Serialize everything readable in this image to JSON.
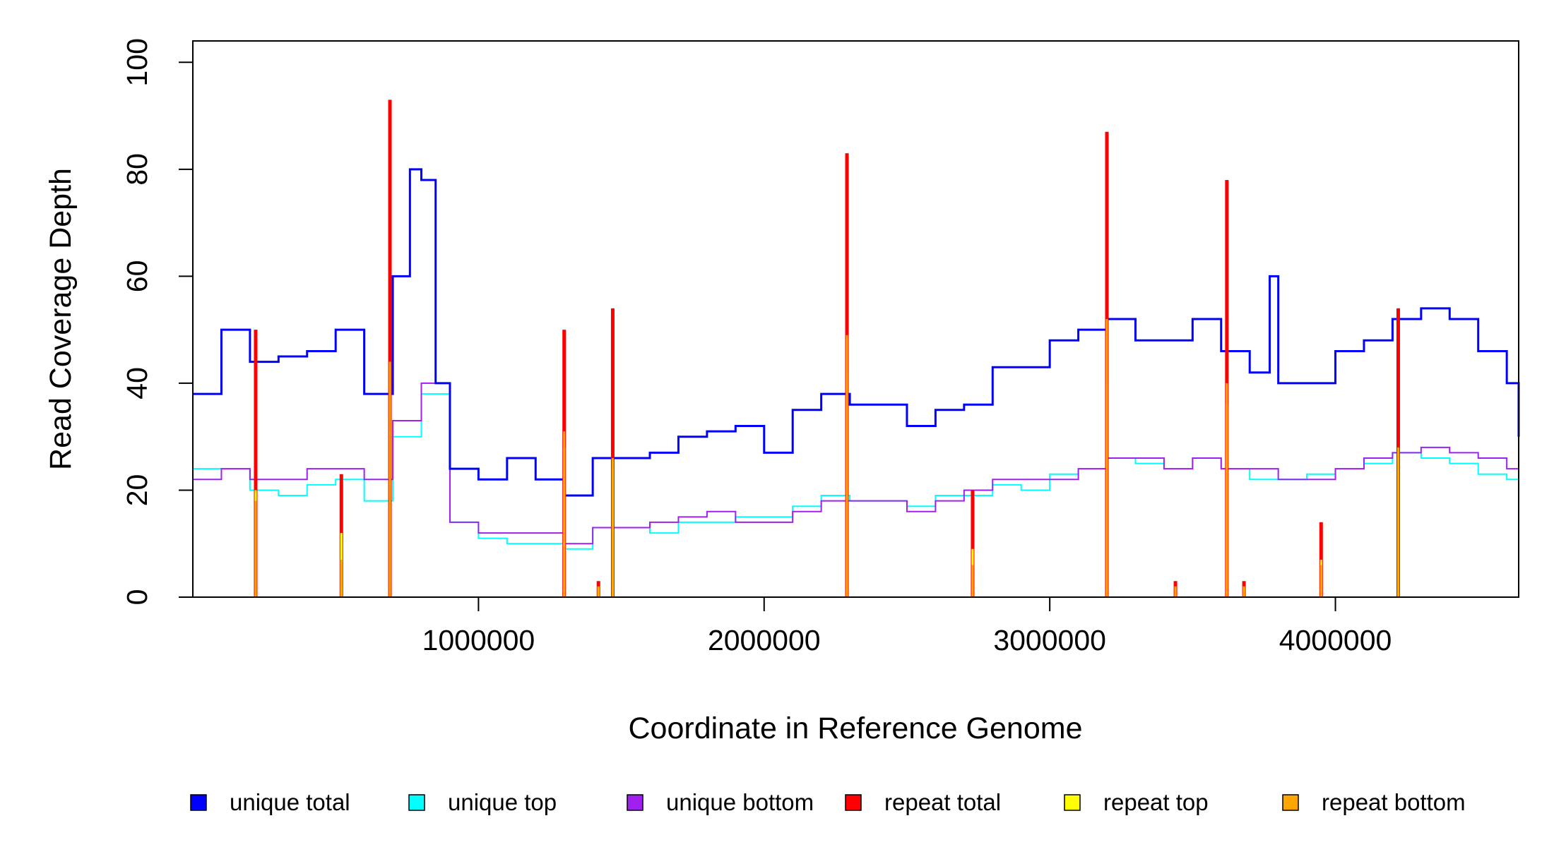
{
  "chart_data": {
    "type": "line",
    "xlabel": "Coordinate in Reference Genome",
    "ylabel": "Read Coverage Depth",
    "xlim": [
      0,
      4641652
    ],
    "ylim": [
      0,
      104
    ],
    "x_ticks": [
      1000000,
      2000000,
      3000000,
      4000000
    ],
    "x_tick_labels": [
      "1000000",
      "2000000",
      "3000000",
      "4000000"
    ],
    "y_ticks": [
      0,
      20,
      40,
      60,
      80,
      100
    ],
    "y_tick_labels": [
      "0",
      "20",
      "40",
      "60",
      "80",
      "100"
    ],
    "grid": false,
    "legend_position": "bottom",
    "series": [
      {
        "name": "unique total",
        "color": "#0000ff",
        "x": [
          0,
          100000,
          200000,
          300000,
          400000,
          500000,
          600000,
          700000,
          760000,
          800000,
          850000,
          900000,
          1000000,
          1100000,
          1200000,
          1300000,
          1400000,
          1500000,
          1600000,
          1700000,
          1800000,
          1900000,
          2000000,
          2100000,
          2200000,
          2300000,
          2400000,
          2500000,
          2600000,
          2700000,
          2800000,
          2900000,
          3000000,
          3100000,
          3200000,
          3300000,
          3400000,
          3500000,
          3600000,
          3700000,
          3770000,
          3800000,
          3900000,
          4000000,
          4100000,
          4200000,
          4300000,
          4400000,
          4500000,
          4600000,
          4641652
        ],
        "values": [
          38,
          50,
          44,
          45,
          46,
          50,
          38,
          60,
          80,
          78,
          40,
          24,
          22,
          26,
          22,
          19,
          26,
          26,
          27,
          30,
          31,
          32,
          27,
          35,
          38,
          36,
          36,
          32,
          35,
          36,
          43,
          43,
          48,
          50,
          52,
          48,
          48,
          52,
          46,
          42,
          60,
          40,
          40,
          46,
          48,
          52,
          54,
          52,
          46,
          40,
          30
        ]
      },
      {
        "name": "unique top",
        "color": "#00ffff",
        "x": [
          0,
          100000,
          200000,
          300000,
          400000,
          500000,
          600000,
          700000,
          800000,
          900000,
          1000000,
          1100000,
          1200000,
          1300000,
          1400000,
          1500000,
          1600000,
          1700000,
          1800000,
          1900000,
          2000000,
          2100000,
          2200000,
          2300000,
          2400000,
          2500000,
          2600000,
          2700000,
          2800000,
          2900000,
          3000000,
          3100000,
          3200000,
          3300000,
          3400000,
          3500000,
          3600000,
          3700000,
          3800000,
          3900000,
          4000000,
          4100000,
          4200000,
          4300000,
          4400000,
          4500000,
          4600000,
          4641652
        ],
        "values": [
          24,
          24,
          20,
          19,
          21,
          22,
          18,
          30,
          38,
          14,
          11,
          10,
          10,
          9,
          13,
          13,
          12,
          14,
          14,
          15,
          15,
          17,
          19,
          18,
          18,
          17,
          19,
          19,
          21,
          20,
          23,
          24,
          26,
          25,
          24,
          26,
          24,
          22,
          22,
          23,
          24,
          25,
          27,
          26,
          25,
          23,
          22,
          20
        ]
      },
      {
        "name": "unique bottom",
        "color": "#a020f0",
        "x": [
          0,
          100000,
          200000,
          300000,
          400000,
          500000,
          600000,
          700000,
          800000,
          900000,
          1000000,
          1100000,
          1200000,
          1300000,
          1400000,
          1500000,
          1600000,
          1700000,
          1800000,
          1900000,
          2000000,
          2100000,
          2200000,
          2300000,
          2400000,
          2500000,
          2600000,
          2700000,
          2800000,
          2900000,
          3000000,
          3100000,
          3200000,
          3300000,
          3400000,
          3500000,
          3600000,
          3700000,
          3800000,
          3900000,
          4000000,
          4100000,
          4200000,
          4300000,
          4400000,
          4500000,
          4600000,
          4641652
        ],
        "values": [
          22,
          24,
          22,
          22,
          24,
          24,
          22,
          33,
          40,
          14,
          12,
          12,
          12,
          10,
          13,
          13,
          14,
          15,
          16,
          14,
          14,
          16,
          18,
          18,
          18,
          16,
          18,
          20,
          22,
          22,
          22,
          24,
          26,
          26,
          24,
          26,
          24,
          24,
          22,
          22,
          24,
          26,
          27,
          28,
          27,
          26,
          24,
          22
        ]
      },
      {
        "name": "repeat total",
        "color": "#ff0000",
        "x": [
          220000,
          520000,
          690000,
          1300000,
          1420000,
          1470000,
          2290000,
          2730000,
          3200000,
          3440000,
          3620000,
          3680000,
          3950000,
          4220000
        ],
        "values": [
          50,
          23,
          93,
          50,
          3,
          54,
          83,
          20,
          87,
          3,
          78,
          3,
          14,
          54
        ]
      },
      {
        "name": "repeat top",
        "color": "#ffff00",
        "x": [
          220000,
          520000,
          690000,
          1300000,
          1420000,
          1470000,
          2290000,
          2730000,
          3200000,
          3440000,
          3620000,
          3680000,
          3950000,
          4220000
        ],
        "values": [
          20,
          12,
          44,
          28,
          2,
          24,
          42,
          9,
          40,
          2,
          36,
          2,
          7,
          25
        ]
      },
      {
        "name": "repeat bottom",
        "color": "#ffa500",
        "x": [
          220000,
          520000,
          690000,
          1300000,
          1420000,
          1470000,
          2290000,
          2730000,
          3200000,
          3440000,
          3620000,
          3680000,
          3950000,
          4220000
        ],
        "values": [
          18,
          7,
          44,
          31,
          2,
          26,
          49,
          6,
          52,
          2,
          40,
          2,
          6,
          28
        ]
      }
    ]
  }
}
